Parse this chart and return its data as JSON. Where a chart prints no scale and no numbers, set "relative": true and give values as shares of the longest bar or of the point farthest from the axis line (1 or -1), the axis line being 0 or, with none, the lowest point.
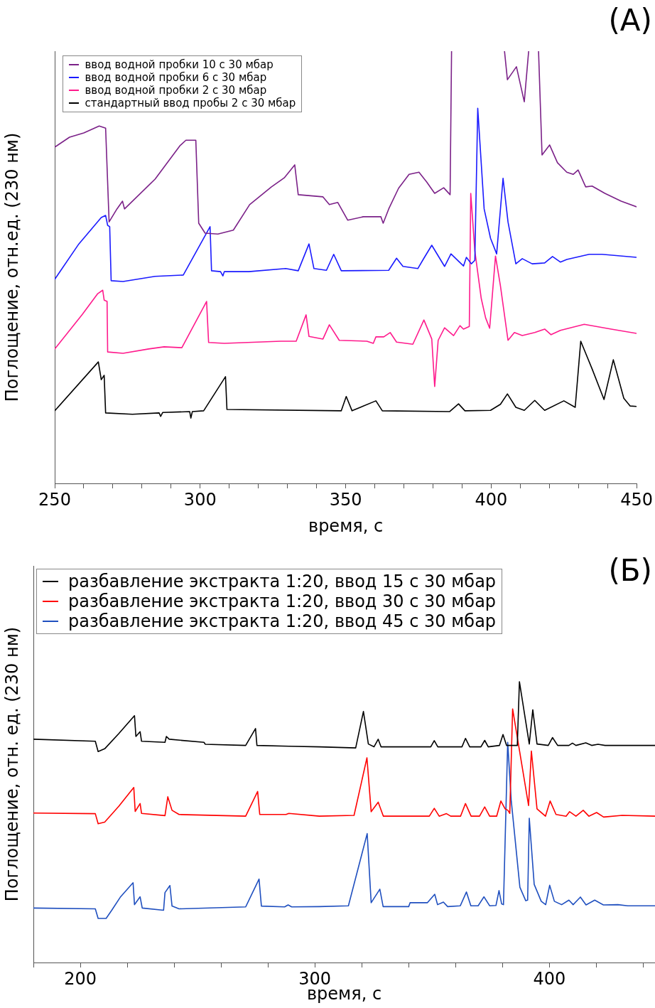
{
  "chart_data": [
    {
      "type": "line",
      "title": "(А)",
      "xlabel": "время, с",
      "ylabel": "Поглощение, отн.ед. (230 нм)",
      "relative": true,
      "legend": "top left",
      "tick_labels": "x",
      "grid": false,
      "xlim": [
        250,
        450
      ],
      "xticks": [
        250,
        {
          "value": 260,
          "label": null
        },
        {
          "value": 270,
          "label": null
        },
        {
          "value": 280,
          "label": null
        },
        {
          "value": 290,
          "label": null
        },
        300,
        {
          "value": 310,
          "label": null
        },
        {
          "value": 320,
          "label": null
        },
        {
          "value": 330,
          "label": null
        },
        {
          "value": 340,
          "label": null
        },
        350,
        {
          "value": 360,
          "label": null
        },
        {
          "value": 370,
          "label": null
        },
        {
          "value": 380,
          "label": null
        },
        {
          "value": 390,
          "label": null
        },
        400,
        {
          "value": 410,
          "label": null
        },
        {
          "value": 420,
          "label": null
        },
        {
          "value": 430,
          "label": null
        },
        {
          "value": 440,
          "label": null
        },
        450
      ],
      "series": [
        {
          "name": "ввод водной пробки 10 с 30 мбар",
          "color": "#7b2188",
          "x": [
            250,
            255.1,
            260,
            265.3,
            267.5,
            268.7,
            271.4,
            273.3,
            274,
            284.5,
            293,
            295.1,
            298.5,
            299.5,
            301.7,
            306.1,
            311.4,
            317,
            324.5,
            328.9,
            332.5,
            333.7,
            342.2,
            344.4,
            347.3,
            350.7,
            356.1,
            362.1,
            362.9,
            364.8,
            368.2,
            371.8,
            375.2,
            377.9,
            380.6,
            383.7,
            385.9,
            386.4,
            395,
            404.6,
            405.6,
            408.7,
            411.4,
            412.9,
            414.5,
            416.3,
            417.5,
            420.1,
            422.8,
            426,
            428.2,
            429.9,
            432.5,
            434.7,
            439.1,
            444.7,
            450
          ],
          "values": [
            0.778,
            0.801,
            0.811,
            0.827,
            0.822,
            0.605,
            0.635,
            0.653,
            0.635,
            0.704,
            0.781,
            0.794,
            0.794,
            0.602,
            0.579,
            0.577,
            0.586,
            0.645,
            0.686,
            0.707,
            0.737,
            0.668,
            0.663,
            0.645,
            0.65,
            0.609,
            0.617,
            0.617,
            0.602,
            0.635,
            0.683,
            0.715,
            0.72,
            0.697,
            0.671,
            0.684,
            0.668,
            1,
            null,
            1,
            0.934,
            0.964,
            0.883,
            1,
            null,
            1,
            0.76,
            0.783,
            0.742,
            0.72,
            0.715,
            0.725,
            0.686,
            0.688,
            0.671,
            0.653,
            0.64
          ]
        },
        {
          "name": "ввод водной пробки 6 с 30 мбар",
          "color": "#1a1aff",
          "x": [
            250,
            258.3,
            266,
            267.5,
            268.2,
            268.9,
            269.4,
            273.5,
            284.5,
            294.2,
            303.4,
            303.9,
            307,
            307.8,
            308.3,
            316.7,
            329.4,
            333.7,
            337.4,
            339.1,
            343.4,
            345.9,
            348.5,
            364.8,
            367.5,
            369.7,
            374.8,
            376.9,
            379.6,
            384,
            386.2,
            390.5,
            391.5,
            393.2,
            394.4,
            395.4,
            397.6,
            399.8,
            401.9,
            404.1,
            405.8,
            408.5,
            410.7,
            414.1,
            418.4,
            421.1,
            423.8,
            426,
            433.7,
            438.1,
            450
          ],
          "values": [
            0.472,
            0.554,
            0.615,
            0.62,
            0.597,
            0.594,
            0.469,
            0.467,
            0.479,
            0.482,
            0.594,
            0.492,
            0.49,
            0.48,
            0.49,
            0.49,
            0.497,
            0.492,
            0.554,
            0.497,
            0.493,
            0.53,
            0.492,
            0.493,
            0.521,
            0.502,
            0.497,
            0.521,
            0.551,
            0.502,
            0.531,
            0.503,
            0.523,
            0.508,
            0.516,
            0.868,
            0.635,
            0.567,
            0.531,
            0.706,
            0.605,
            0.508,
            0.52,
            0.508,
            0.51,
            0.525,
            0.512,
            0.518,
            0.53,
            0.53,
            0.523
          ]
        },
        {
          "name": "ввод водной пробки 2 с 30 мбар",
          "color": "#ff1a8c",
          "x": [
            250,
            259.5,
            264.8,
            266.5,
            267,
            268,
            268.2,
            273.5,
            282.3,
            287.6,
            293.7,
            302.2,
            302.9,
            308.3,
            327.7,
            333,
            336.4,
            337.4,
            342.2,
            344.4,
            347.8,
            357.3,
            359.5,
            360.4,
            363.1,
            365.3,
            367.5,
            373.1,
            376.9,
            379.6,
            380.6,
            381.8,
            384,
            387.1,
            389.3,
            390.5,
            392.5,
            393,
            394.4,
            396.6,
            398.1,
            399.5,
            401.5,
            403.2,
            405.8,
            408,
            410.7,
            415,
            418.4,
            420.6,
            423.8,
            432,
            441.3,
            450
          ],
          "values": [
            0.311,
            0.391,
            0.439,
            0.447,
            0.424,
            0.421,
            0.304,
            0.301,
            0.311,
            0.316,
            0.314,
            0.421,
            0.326,
            0.324,
            0.329,
            0.329,
            0.39,
            0.34,
            0.334,
            0.367,
            0.331,
            0.329,
            0.324,
            0.339,
            0.339,
            0.349,
            0.327,
            0.322,
            0.378,
            0.334,
            0.224,
            0.331,
            0.36,
            0.342,
            0.365,
            0.357,
            0.363,
            0.671,
            0.538,
            0.428,
            0.383,
            0.359,
            0.526,
            0.457,
            0.331,
            0.349,
            0.342,
            0.349,
            0.357,
            0.344,
            0.354,
            0.368,
            0.357,
            0.347
          ]
        },
        {
          "name": "стандартный ввод пробы 2 с 30 мбар",
          "color": "#000000",
          "x": [
            250,
            265,
            266,
            267,
            267.5,
            276.7,
            285.9,
            286.4,
            287.1,
            296.4,
            296.8,
            297.3,
            301.2,
            308.7,
            309.2,
            348.5,
            350.2,
            352.2,
            360.4,
            362.6,
            385.7,
            388.8,
            391,
            399.8,
            403.2,
            405.6,
            408.5,
            411.4,
            415,
            418.4,
            425,
            428.9,
            430.8,
            434.7,
            438.8,
            442,
            445.6,
            447.8,
            450
          ],
          "values": [
            0.168,
            0.281,
            0.24,
            0.25,
            0.163,
            0.16,
            0.163,
            0.155,
            0.164,
            0.166,
            0.151,
            0.166,
            0.168,
            0.247,
            0.171,
            0.168,
            0.201,
            0.168,
            0.191,
            0.168,
            0.166,
            0.184,
            0.168,
            0.169,
            0.183,
            0.207,
            0.176,
            0.169,
            0.192,
            0.169,
            0.191,
            0.176,
            0.329,
            0.265,
            0.194,
            0.286,
            0.197,
            0.179,
            0.178
          ]
        }
      ]
    },
    {
      "type": "line",
      "title": "(Б)",
      "xlabel": "время, с",
      "ylabel": "Поглощение, отн. ед. (230 нм)",
      "relative": true,
      "legend": "top left",
      "tick_labels": "x",
      "grid": false,
      "xlim": [
        180,
        445
      ],
      "xticks": [
        {
          "value": 180,
          "label": null
        },
        200,
        {
          "value": 220,
          "label": null
        },
        {
          "value": 240,
          "label": null
        },
        {
          "value": 260,
          "label": null
        },
        {
          "value": 280,
          "label": null
        },
        300,
        {
          "value": 320,
          "label": null
        },
        {
          "value": 340,
          "label": null
        },
        {
          "value": 360,
          "label": null
        },
        {
          "value": 380,
          "label": null
        },
        400,
        {
          "value": 420,
          "label": null
        },
        {
          "value": 440,
          "label": null
        }
      ],
      "series": [
        {
          "name": "разбавление экстракта 1:20, ввод 15 с 30 мбар",
          "color": "#000000",
          "x": [
            180,
            206.4,
            207.6,
            210.4,
            216.4,
            223.1,
            223.7,
            225.5,
            226.1,
            236.1,
            236.7,
            237.9,
            252.7,
            253.3,
            270.5,
            274.7,
            275.3,
            288.9,
            301.9,
            317.4,
            320.7,
            322.8,
            325.2,
            327,
            328.2,
            349.4,
            350.9,
            352.4,
            362.7,
            364.2,
            366,
            370.8,
            372.4,
            373.9,
            378.7,
            380.2,
            381.7,
            386.3,
            387.2,
            391.4,
            392.9,
            394.7,
            399.5,
            401.3,
            403.5,
            408.3,
            409.8,
            411.3,
            415.5,
            418,
            420.7,
            423.7,
            445
          ],
          "values": [
            0.795,
            0.788,
            0.751,
            0.761,
            0.815,
            0.879,
            0.805,
            0.822,
            0.788,
            0.784,
            0.805,
            0.795,
            0.784,
            0.777,
            0.773,
            0.833,
            0.773,
            0.77,
            0.768,
            0.764,
            0.894,
            0.778,
            0.768,
            0.795,
            0.768,
            0.768,
            0.79,
            0.768,
            0.768,
            0.798,
            0.768,
            0.768,
            0.791,
            0.768,
            0.773,
            0.812,
            0.773,
            0.773,
            1,
            0.778,
            0.9,
            0.778,
            0.773,
            0.801,
            0.773,
            0.773,
            0.781,
            0.773,
            0.782,
            0.773,
            0.777,
            0.773,
            0.773
          ]
        },
        {
          "name": "разбавление экстракта 1:20, ввод 30 с 30 мбар",
          "color": "#ff0000",
          "x": [
            180,
            206.4,
            207.6,
            210.4,
            216.4,
            222.8,
            223.4,
            225.5,
            226.1,
            236.1,
            237.3,
            239.1,
            242.1,
            270.5,
            275.6,
            276.5,
            287.7,
            288.9,
            301.9,
            316.7,
            322.2,
            324,
            327,
            329.2,
            348.8,
            350.9,
            353,
            356.1,
            357.9,
            362.1,
            364.2,
            366.6,
            370.2,
            372.4,
            374.5,
            377.5,
            379.3,
            381.1,
            382.3,
            383.1,
            384.3,
            391.1,
            392.3,
            394.7,
            398.3,
            400.3,
            402.8,
            407.1,
            408.6,
            411.3,
            414.4,
            416.8,
            420.1,
            423.1,
            431,
            445
          ],
          "values": [
            0.532,
            0.53,
            0.494,
            0.5,
            0.556,
            0.623,
            0.538,
            0.566,
            0.531,
            0.523,
            0.59,
            0.542,
            0.527,
            0.521,
            0.609,
            0.527,
            0.527,
            0.531,
            0.521,
            0.524,
            0.729,
            0.537,
            0.571,
            0.521,
            0.521,
            0.549,
            0.521,
            0.53,
            0.521,
            0.521,
            0.566,
            0.521,
            0.521,
            0.554,
            0.521,
            0.521,
            0.575,
            0.547,
            0.542,
            0.531,
            0.903,
            0.559,
            0.753,
            0.547,
            0.521,
            0.575,
            0.527,
            0.521,
            0.537,
            0.521,
            0.542,
            0.521,
            0.534,
            0.518,
            0.524,
            0.521
          ]
        },
        {
          "name": "разбавление экстракта 1:20, ввод 45 с 30 мбар",
          "color": "#1f4fbf",
          "x": [
            180,
            206.4,
            207.6,
            211,
            213.4,
            217,
            222.5,
            223.1,
            225.5,
            226.4,
            235.5,
            236.1,
            238.2,
            239.1,
            242.1,
            270.5,
            276.2,
            277.2,
            287.1,
            288.6,
            290.1,
            301.9,
            314.3,
            322.3,
            324,
            327.7,
            329.1,
            340,
            340.6,
            348,
            351.1,
            352.3,
            354.8,
            356.6,
            362,
            364.6,
            366.5,
            369.6,
            372.1,
            374.5,
            377.2,
            378.5,
            379.6,
            380.4,
            382.2,
            383.7,
            387.4,
            389.9,
            390.7,
            391.4,
            393.5,
            396.5,
            398.4,
            400.1,
            402.1,
            405.2,
            408.3,
            410.1,
            413.2,
            415.6,
            419.3,
            423,
            429.2,
            433.4,
            445
          ],
          "values": [
            0.194,
            0.191,
            0.157,
            0.157,
            0.186,
            0.232,
            0.284,
            0.206,
            0.234,
            0.194,
            0.186,
            0.249,
            0.274,
            0.201,
            0.191,
            0.198,
            0.297,
            0.201,
            0.198,
            0.205,
            0.198,
            0.199,
            0.202,
            0.459,
            0.213,
            0.261,
            0.199,
            0.199,
            0.213,
            0.213,
            0.243,
            0.206,
            0.215,
            0.199,
            0.202,
            0.251,
            0.202,
            0.202,
            0.234,
            0.202,
            0.203,
            0.256,
            0.209,
            0.206,
            0.784,
            0.578,
            0.268,
            0.22,
            0.222,
            0.514,
            0.278,
            0.218,
            0.206,
            0.275,
            0.218,
            0.206,
            0.222,
            0.206,
            0.233,
            0.205,
            0.222,
            0.205,
            0.206,
            0.202,
            0.202
          ]
        }
      ]
    }
  ]
}
